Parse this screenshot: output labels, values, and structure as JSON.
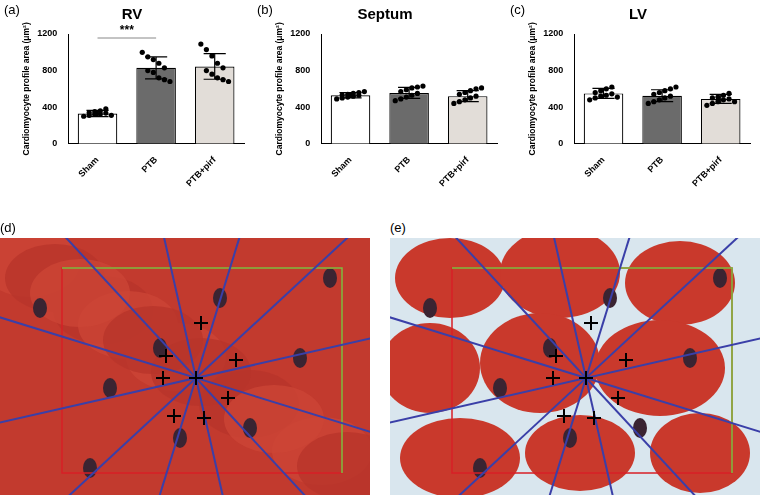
{
  "chart_data": [
    {
      "type": "bar",
      "panel": "(a)",
      "title": "RV",
      "y_label": "Cardiomyocyte profile area (μm²)",
      "categories": [
        "Sham",
        "PTB",
        "PTB+pirf"
      ],
      "values": [
        330,
        830,
        845
      ],
      "errors": [
        35,
        120,
        140
      ],
      "points": [
        [
          300,
          310,
          320,
          325,
          335,
          340,
          350,
          360,
          380,
          310
        ],
        [
          1000,
          950,
          920,
          880,
          830,
          800,
          780,
          720,
          700,
          680
        ],
        [
          1090,
          1030,
          960,
          880,
          830,
          800,
          760,
          720,
          700,
          680
        ]
      ],
      "colors": [
        "#ffffff",
        "#6b6b6b",
        "#e2ddd8"
      ],
      "significance": {
        "from": "Sham",
        "to": "PTB",
        "label": "***"
      },
      "ylim": [
        0,
        1200
      ],
      "yticks": [
        0,
        400,
        800,
        1200
      ],
      "grid": false
    },
    {
      "type": "bar",
      "panel": "(b)",
      "title": "Septum",
      "y_label": "Cardiomyocyte profile area (μm²)",
      "categories": [
        "Sham",
        "PTB",
        "PTB+pirf"
      ],
      "values": [
        530,
        555,
        520
      ],
      "errors": [
        30,
        60,
        60
      ],
      "points": [
        [
          490,
          500,
          510,
          520,
          530,
          535,
          540,
          550,
          560,
          570
        ],
        [
          470,
          490,
          510,
          530,
          550,
          570,
          590,
          610,
          620,
          630
        ],
        [
          440,
          460,
          480,
          500,
          520,
          540,
          560,
          580,
          600,
          610
        ]
      ],
      "colors": [
        "#ffffff",
        "#6b6b6b",
        "#e2ddd8"
      ],
      "ylim": [
        0,
        1200
      ],
      "yticks": [
        0,
        400,
        800,
        1200
      ],
      "grid": false
    },
    {
      "type": "bar",
      "panel": "(c)",
      "title": "LV",
      "y_label": "Cardiomyocyte profile area (μm²)",
      "categories": [
        "Sham",
        "PTB",
        "PTB+pirf"
      ],
      "values": [
        550,
        525,
        490
      ],
      "errors": [
        55,
        65,
        50
      ],
      "points": [
        [
          480,
          500,
          520,
          530,
          545,
          560,
          580,
          600,
          620,
          510
        ],
        [
          440,
          460,
          480,
          500,
          520,
          540,
          560,
          580,
          600,
          620
        ],
        [
          420,
          440,
          460,
          480,
          490,
          500,
          510,
          530,
          550,
          460
        ]
      ],
      "colors": [
        "#ffffff",
        "#6b6b6b",
        "#e2ddd8"
      ],
      "ylim": [
        0,
        1200
      ],
      "yticks": [
        0,
        400,
        800,
        1200
      ],
      "grid": false
    }
  ],
  "images": [
    {
      "panel": "(d)"
    },
    {
      "panel": "(e)"
    }
  ]
}
